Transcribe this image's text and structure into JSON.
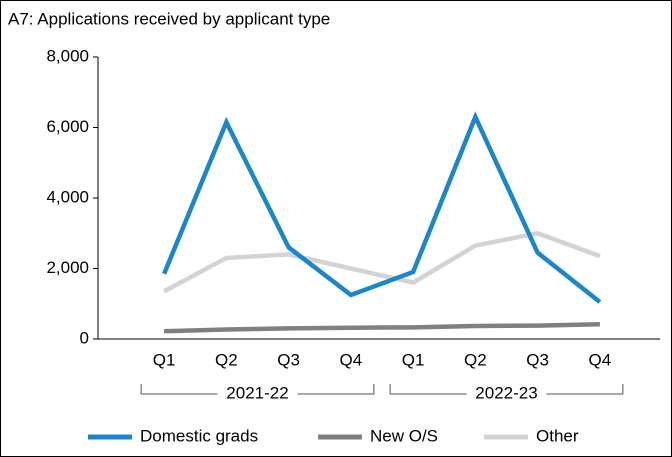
{
  "chart_data": {
    "type": "line",
    "title": "A7: Applications received by applicant type",
    "categories": [
      "Q1",
      "Q2",
      "Q3",
      "Q4",
      "Q1",
      "Q2",
      "Q3",
      "Q4"
    ],
    "groups": [
      "2021-22",
      "2022-23"
    ],
    "series": [
      {
        "name": "Domestic grads",
        "color": "#1a87cc",
        "values": [
          1850,
          6150,
          2600,
          1250,
          1900,
          6300,
          2450,
          1050
        ]
      },
      {
        "name": "New O/S",
        "color": "#808080",
        "values": [
          220,
          270,
          300,
          320,
          330,
          370,
          380,
          420
        ]
      },
      {
        "name": "Other",
        "color": "#d3d3d3",
        "values": [
          1350,
          2300,
          2400,
          2000,
          1600,
          2650,
          3000,
          2350
        ]
      }
    ],
    "ylim": [
      0,
      8000
    ],
    "yticks": [
      0,
      {
        "value": 2000,
        "label": "2,000"
      },
      {
        "value": 4000,
        "label": "4,000"
      },
      {
        "value": 6000,
        "label": "6,000"
      },
      {
        "value": 8000,
        "label": "8,000"
      }
    ],
    "grid": false,
    "legend": "bottom"
  }
}
